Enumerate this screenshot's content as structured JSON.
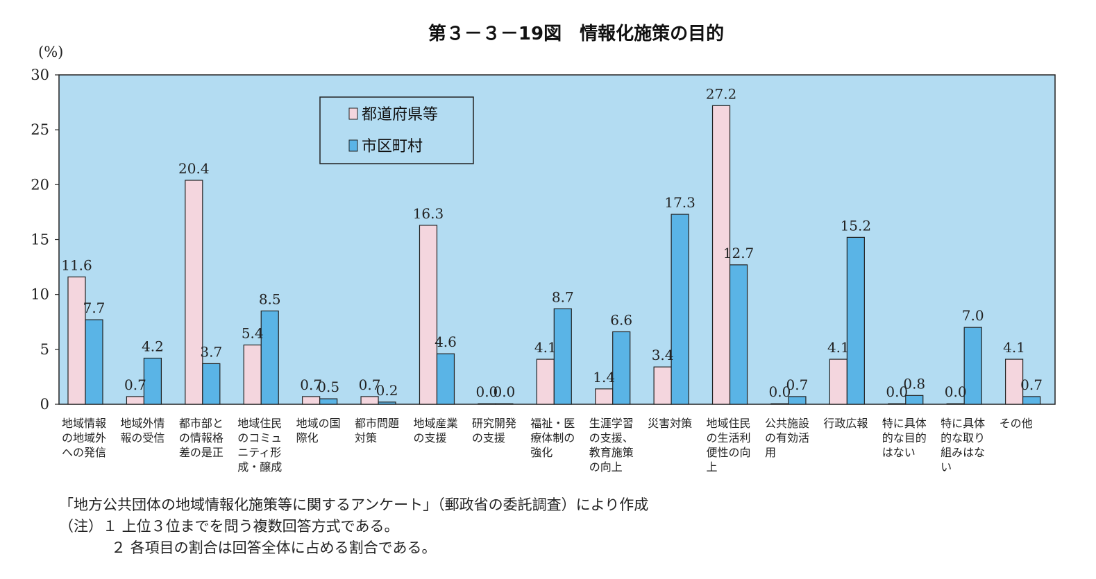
{
  "chart_data": {
    "type": "bar",
    "title": "第３－３－19図　情報化施策の目的",
    "ylabel": "(%)",
    "ylim": [
      0,
      30
    ],
    "yticks": [
      "0",
      "5",
      "10",
      "15",
      "20",
      "25",
      "30"
    ],
    "grid": false,
    "legend_position": "top-left",
    "colors": {
      "prefecture": "#f4d6de",
      "municipal": "#5ab4e6",
      "plot_bg": "#b3dcf2"
    },
    "categories": [
      "地域情報の地域外への発信",
      "地域外情報の受信",
      "都市部との情報格差の是正",
      "地域住民のコミュニティ形成・醸成",
      "地域の国際化",
      "都市問題対策",
      "地域産業の支援",
      "研究開発の支援",
      "福祉・医療体制の強化",
      "生涯学習の支援、教育施策の向上",
      "災害対策",
      "地域住民の生活利便性の向上",
      "公共施設の有効活用",
      "行政広報",
      "特に具体的な目的はない",
      "特に具体的な取り組みはない",
      "その他"
    ],
    "category_lines": [
      [
        "地域情報",
        "の地域外",
        "への発信"
      ],
      [
        "地域外情",
        "報の受信"
      ],
      [
        "都市部と",
        "の情報格",
        "差の是正"
      ],
      [
        "地域住民",
        "のコミュ",
        "ニティ形",
        "成・醸成"
      ],
      [
        "地域の国",
        "際化"
      ],
      [
        "都市問題",
        "対策"
      ],
      [
        "地域産業",
        "の支援"
      ],
      [
        "研究開発",
        "の支援"
      ],
      [
        "福祉・医",
        "療体制の",
        "強化"
      ],
      [
        "生涯学習",
        "の支援、",
        "教育施策",
        "の向上"
      ],
      [
        "災害対策"
      ],
      [
        "地域住民",
        "の生活利",
        "便性の向",
        "上"
      ],
      [
        "公共施設",
        "の有効活",
        "用"
      ],
      [
        "行政広報"
      ],
      [
        "特に具体",
        "的な目的",
        "はない"
      ],
      [
        "特に具体",
        "的な取り",
        "組みはな",
        "い"
      ],
      [
        "その他"
      ]
    ],
    "series": [
      {
        "name": "都道府県等",
        "values": [
          11.6,
          0.7,
          20.4,
          5.4,
          0.7,
          0.7,
          16.3,
          0.0,
          4.1,
          1.4,
          3.4,
          27.2,
          0.0,
          4.1,
          0.0,
          0.0,
          4.1
        ],
        "labels": [
          "11.6",
          "0.7",
          "20.4",
          "5.4",
          "0.7",
          "0.7",
          "16.3",
          "0.0",
          "4.1",
          "1.4",
          "3.4",
          "27.2",
          "0.0",
          "4.1",
          "0.0",
          "0.0",
          "4.1"
        ]
      },
      {
        "name": "市区町村",
        "values": [
          7.7,
          4.2,
          3.7,
          8.5,
          0.5,
          0.2,
          4.6,
          0.0,
          8.7,
          6.6,
          17.3,
          12.7,
          0.7,
          15.2,
          0.8,
          7.0,
          0.7
        ],
        "labels": [
          "7.7",
          "4.2",
          "3.7",
          "8.5",
          "0.5",
          "0.2",
          "4.6",
          "0.0",
          "8.7",
          "6.6",
          "17.3",
          "12.7",
          "0.7",
          "15.2",
          "0.8",
          "7.0",
          "0.7"
        ]
      }
    ]
  },
  "notes": {
    "source": "「地方公共団体の地域情報化施策等に関するアンケート」（郵政省の委託調査）により作成",
    "note1": "（注）１ 上位３位までを問う複数回答方式である。",
    "note2": "２ 各項目の割合は回答全体に占める割合である。"
  }
}
